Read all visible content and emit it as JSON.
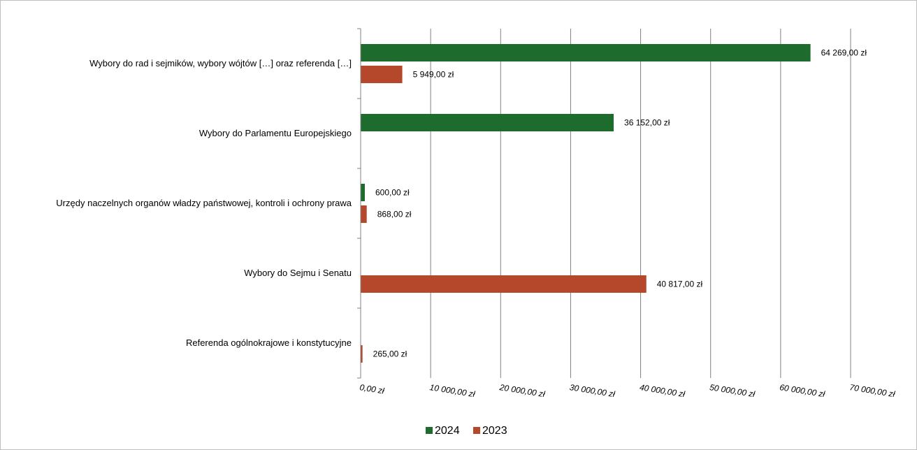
{
  "chart_data": {
    "type": "bar",
    "orientation": "horizontal",
    "categories": [
      "Wybory do rad i sejmików, wybory wójtów […] oraz referenda […]",
      "Wybory do Parlamentu Europejskiego",
      "Urzędy naczelnych organów władzy państwowej, kontroli i ochrony prawa",
      "Wybory do Sejmu i Senatu",
      "Referenda ogólnokrajowe i konstytucyjne"
    ],
    "series": [
      {
        "name": "2024",
        "color": "#1e6b2e",
        "values": [
          64269,
          36152,
          600,
          null,
          null
        ],
        "labels": [
          "64 269,00 zł",
          "36 152,00 zł",
          "600,00 zł",
          "",
          ""
        ]
      },
      {
        "name": "2023",
        "color": "#b5472a",
        "values": [
          5949,
          null,
          868,
          40817,
          265
        ],
        "labels": [
          "5 949,00 zł",
          "",
          "868,00 zł",
          "40 817,00 zł",
          "265,00 zł"
        ]
      }
    ],
    "xlim": [
      0,
      70000
    ],
    "ticks": [
      0,
      10000,
      20000,
      30000,
      40000,
      50000,
      60000,
      70000
    ],
    "tick_labels": [
      "0,00 zł",
      "10 000,00 zł",
      "20 000,00 zł",
      "30 000,00 zł",
      "40 000,00 zł",
      "50 000,00 zł",
      "60 000,00 zł",
      "70 000,00 zł"
    ],
    "grid": true,
    "legend": "bottom"
  }
}
